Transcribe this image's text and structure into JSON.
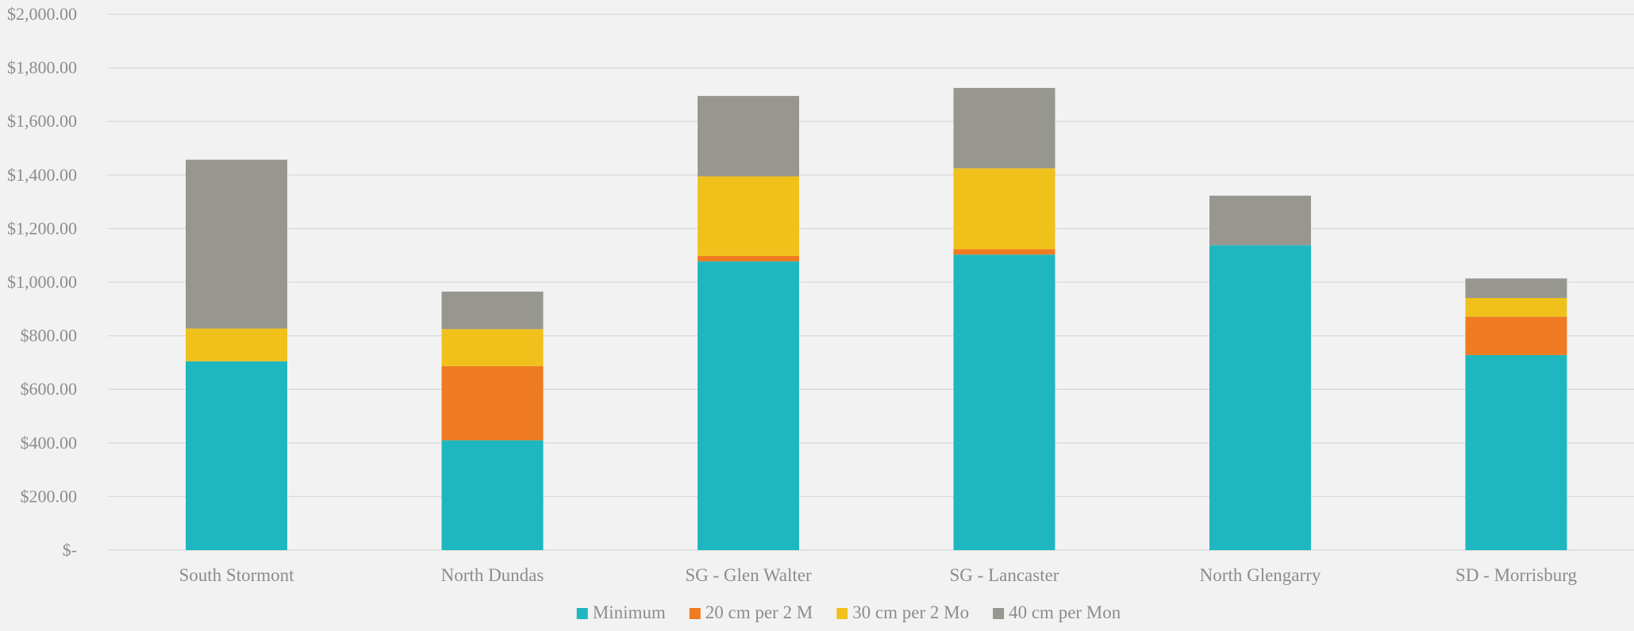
{
  "chart_data": {
    "type": "bar",
    "stacked": true,
    "categories": [
      "South Stormont",
      "North Dundas",
      "SG - Glen Walter",
      "SG - Lancaster",
      "North Glengarry",
      "SD - Morrisburg"
    ],
    "series": [
      {
        "name": "Minimum",
        "color": "#1fb7bf",
        "values": [
          705,
          410,
          1078,
          1103,
          1138,
          728
        ]
      },
      {
        "name": "20 cm per 2 M",
        "color": "#ef7b22",
        "values": [
          0,
          277,
          20,
          20,
          0,
          143
        ]
      },
      {
        "name": "30 cm per 2 Mo",
        "color": "#f0c11a",
        "values": [
          122,
          138,
          297,
          302,
          0,
          70
        ]
      },
      {
        "name": "40 cm per Mon",
        "color": "#979790",
        "values": [
          630,
          140,
          300,
          300,
          185,
          73
        ]
      }
    ],
    "y_ticks": [
      "$-",
      "$200.00",
      "$400.00",
      "$600.00",
      "$800.00",
      "$1,000.00",
      "$1,200.00",
      "$1,400.00",
      "$1,600.00",
      "$1,800.00",
      "$2,000.00"
    ],
    "ylim": [
      0,
      2000
    ],
    "y_step": 200,
    "grid": true,
    "legend": "bottom",
    "colors": {
      "background": "#f2f2f2",
      "grid": "#d9d9d9",
      "text": "#8c8c8c"
    }
  }
}
